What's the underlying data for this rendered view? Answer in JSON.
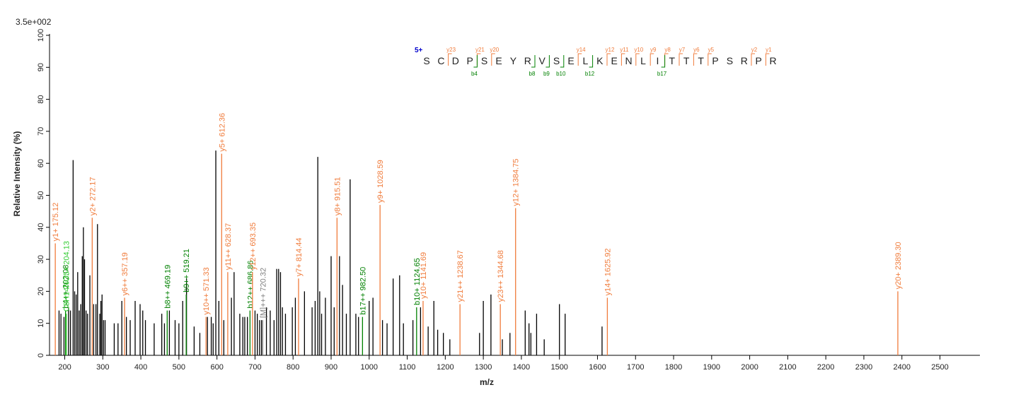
{
  "chart_data": {
    "type": "spectrum",
    "scale_label": "3.5e+002",
    "y_label": "Relative   Intensity (%)",
    "x_label": "m/z",
    "xlim": [
      160,
      2605
    ],
    "xticks": [
      200,
      300,
      400,
      500,
      600,
      700,
      800,
      900,
      1000,
      1100,
      1200,
      1300,
      1400,
      1500,
      1600,
      1700,
      1800,
      1900,
      2000,
      2100,
      2200,
      2300,
      2400,
      2500
    ],
    "ylim": [
      0,
      100
    ],
    "yticks": [
      0,
      10,
      20,
      30,
      40,
      50,
      60,
      70,
      80,
      90,
      100
    ],
    "color": "#000000",
    "x": [
      185,
      190,
      198,
      210,
      215,
      222,
      226,
      230,
      234,
      238,
      242,
      246,
      249,
      252,
      256,
      260,
      266,
      276,
      282,
      286,
      292,
      295,
      298,
      302,
      306,
      330,
      340,
      350,
      362,
      372,
      385,
      398,
      405,
      412,
      435,
      455,
      462,
      475,
      490,
      500,
      510,
      520,
      540,
      555,
      575,
      585,
      590,
      597,
      605,
      618,
      638,
      645,
      660,
      668,
      673,
      680,
      700,
      706,
      712,
      717,
      730,
      740,
      750,
      757,
      762,
      767,
      772,
      780,
      798,
      806,
      830,
      850,
      858,
      865,
      870,
      875,
      885,
      900,
      908,
      922,
      930,
      940,
      950,
      965,
      972,
      1000,
      1010,
      1035,
      1047,
      1063,
      1080,
      1090,
      1115,
      1135,
      1155,
      1170,
      1180,
      1195,
      1212,
      1290,
      1300,
      1320,
      1350,
      1370,
      1410,
      1420,
      1425,
      1440,
      1460,
      1500,
      1515,
      1612
    ],
    "values": [
      14,
      13,
      12,
      15,
      14,
      61,
      20,
      19,
      26,
      14,
      16,
      31,
      40,
      30,
      14,
      13,
      25,
      16,
      16,
      41,
      13,
      17,
      19,
      11,
      11,
      10,
      10,
      17,
      12,
      11,
      17,
      16,
      14,
      11,
      10,
      13,
      10,
      14,
      11,
      10,
      17,
      24,
      9,
      7,
      12,
      12,
      10,
      64,
      17,
      11,
      18,
      26,
      13,
      12,
      12,
      12,
      14,
      13,
      11,
      11,
      15,
      14,
      11,
      27,
      27,
      26,
      15,
      13,
      15,
      18,
      20,
      15,
      17,
      62,
      20,
      13,
      18,
      31,
      15,
      31,
      22,
      13,
      55,
      13,
      12,
      17,
      18,
      11,
      10,
      24,
      25,
      10,
      11,
      15,
      9,
      17,
      8,
      7,
      5,
      7,
      17,
      19,
      5,
      7,
      14,
      10,
      7,
      13,
      5,
      16,
      13,
      9
    ],
    "annotations": [
      {
        "label": "y1+ 175.12",
        "x": 175.12,
        "value": 35,
        "color": "#f07c3c"
      },
      {
        "label": "b4++ 202.08",
        "x": 202.08,
        "value": 14,
        "color": "#008000"
      },
      {
        "label": "C8H14NO5+ 204.13",
        "x": 204.13,
        "value": 13,
        "color": "#33cc33"
      },
      {
        "label": "y2+ 272.17",
        "x": 272.17,
        "value": 43,
        "color": "#f07c3c"
      },
      {
        "label": "y6++ 357.19",
        "x": 357.19,
        "value": 18,
        "color": "#f07c3c"
      },
      {
        "label": "b8++ 469.19",
        "x": 469.19,
        "value": 14,
        "color": "#008000"
      },
      {
        "label": "b9++ 519.21",
        "x": 519.21,
        "value": 19,
        "color": "#008000"
      },
      {
        "label": "y10++ 571.33",
        "x": 571.33,
        "value": 12,
        "color": "#f07c3c"
      },
      {
        "label": "y5+ 612.36",
        "x": 612.36,
        "value": 63,
        "color": "#f07c3c"
      },
      {
        "label": "y11++ 628.37",
        "x": 628.37,
        "value": 26,
        "color": "#f07c3c"
      },
      {
        "label": "b12++ 686.86",
        "x": 686.86,
        "value": 14,
        "color": "#008000"
      },
      {
        "label": "y12++ 693.35",
        "x": 693.35,
        "value": 26,
        "color": "#f07c3c"
      },
      {
        "label": "[M]+++ 720.32",
        "x": 720.32,
        "value": 11,
        "color": "#808080"
      },
      {
        "label": "y7+ 814.44",
        "x": 814.44,
        "value": 24,
        "color": "#f07c3c"
      },
      {
        "label": "y8+ 915.51",
        "x": 915.51,
        "value": 43,
        "color": "#f07c3c"
      },
      {
        "label": "b17++ 982.50",
        "x": 982.5,
        "value": 12,
        "color": "#008000"
      },
      {
        "label": "y9+ 1028.59",
        "x": 1028.59,
        "value": 47,
        "color": "#f07c3c"
      },
      {
        "label": "b10+ 1124.65",
        "x": 1124.65,
        "value": 15,
        "color": "#008000"
      },
      {
        "label": "y10+ 1141.69",
        "x": 1141.69,
        "value": 17,
        "color": "#f07c3c"
      },
      {
        "label": "y21++ 1238.67",
        "x": 1238.67,
        "value": 16,
        "color": "#f07c3c"
      },
      {
        "label": "y23++ 1344.68",
        "x": 1344.68,
        "value": 16,
        "color": "#f07c3c"
      },
      {
        "label": "y12+ 1384.75",
        "x": 1384.75,
        "value": 46,
        "color": "#f07c3c"
      },
      {
        "label": "y14+ 1625.92",
        "x": 1625.92,
        "value": 18,
        "color": "#f07c3c"
      },
      {
        "label": "y20+ 2389.30",
        "x": 2389.3,
        "value": 20,
        "color": "#f07c3c"
      }
    ],
    "sequence": {
      "charge": "5+",
      "residues": [
        "S",
        "C",
        "D",
        "P",
        "S",
        "E",
        "Y",
        "R",
        "V",
        "S",
        "E",
        "L",
        "K",
        "E",
        "N",
        "L",
        "I",
        "T",
        "T",
        "T",
        "P",
        "S",
        "R",
        "P",
        "R"
      ],
      "y_ions": [
        {
          "label": "y23",
          "cleavage": 2
        },
        {
          "label": "y21",
          "cleavage": 4
        },
        {
          "label": "y20",
          "cleavage": 5
        },
        {
          "label": "y14",
          "cleavage": 11
        },
        {
          "label": "y12",
          "cleavage": 13
        },
        {
          "label": "y11",
          "cleavage": 14
        },
        {
          "label": "y10",
          "cleavage": 15
        },
        {
          "label": "y9",
          "cleavage": 16
        },
        {
          "label": "y8",
          "cleavage": 17
        },
        {
          "label": "y7",
          "cleavage": 18
        },
        {
          "label": "y6",
          "cleavage": 19
        },
        {
          "label": "y5",
          "cleavage": 20
        },
        {
          "label": "y2",
          "cleavage": 23
        },
        {
          "label": "y1",
          "cleavage": 24
        }
      ],
      "b_ions": [
        {
          "label": "b4",
          "cleavage": 4
        },
        {
          "label": "b8",
          "cleavage": 8
        },
        {
          "label": "b9",
          "cleavage": 9
        },
        {
          "label": "b10",
          "cleavage": 10
        },
        {
          "label": "b12",
          "cleavage": 12
        },
        {
          "label": "b17",
          "cleavage": 17
        }
      ]
    }
  }
}
